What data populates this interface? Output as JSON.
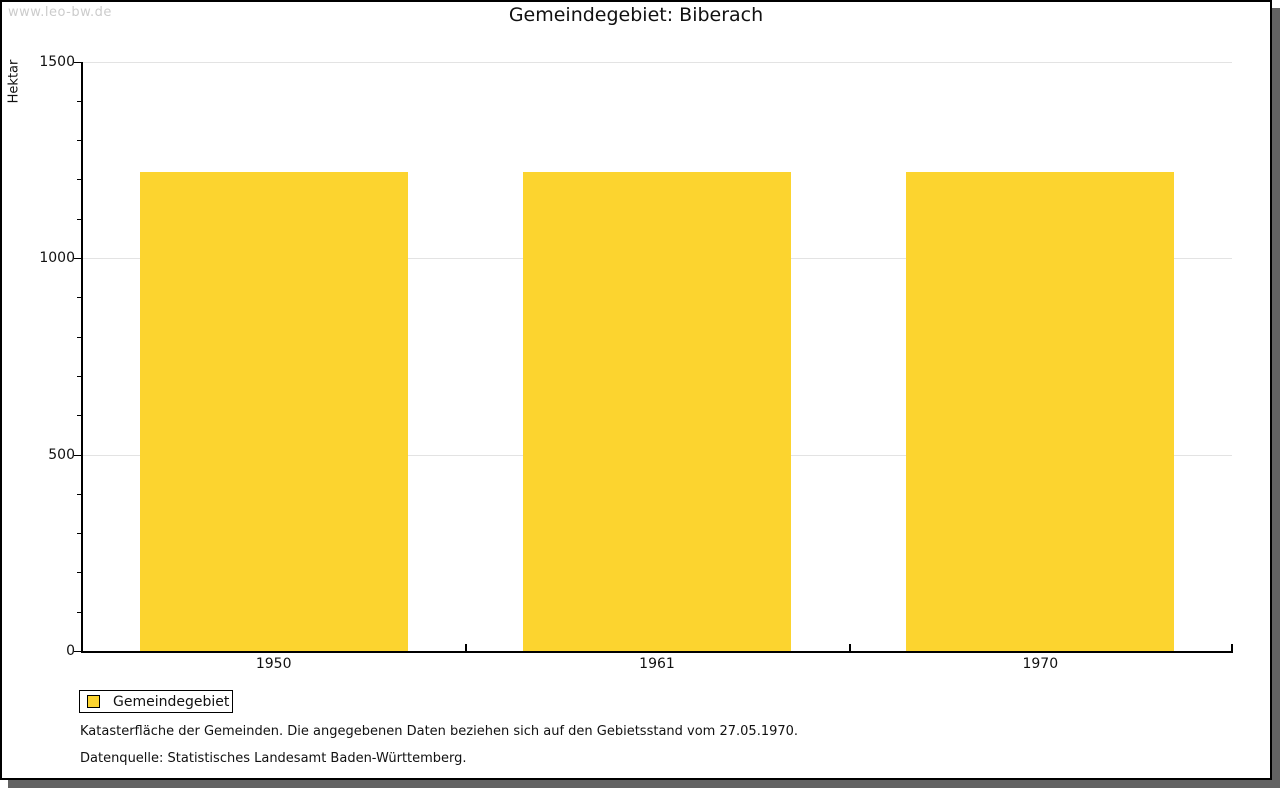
{
  "watermark": "www.leo-bw.de",
  "chart_data": {
    "type": "bar",
    "title": "Gemeindegebiet: Biberach",
    "xlabel": "",
    "ylabel": "Hektar",
    "categories": [
      "1950",
      "1961",
      "1970"
    ],
    "series": [
      {
        "name": "Gemeindegebiet",
        "values": [
          1220,
          1220,
          1220
        ]
      }
    ],
    "ylim": [
      0,
      1500
    ],
    "yticks": [
      0,
      500,
      1000,
      1500
    ],
    "y_minor_step": 100,
    "grid": true,
    "legend_position": "bottom-left",
    "bar_color": "#fcd42f"
  },
  "legend": {
    "items": [
      {
        "label": "Gemeindegebiet",
        "color": "#fcd42f"
      }
    ]
  },
  "footnotes": [
    "Katasterfläche der Gemeinden. Die angegebenen Daten beziehen sich auf den Gebietsstand vom 27.05.1970.",
    "Datenquelle: Statistisches Landesamt Baden-Württemberg."
  ]
}
